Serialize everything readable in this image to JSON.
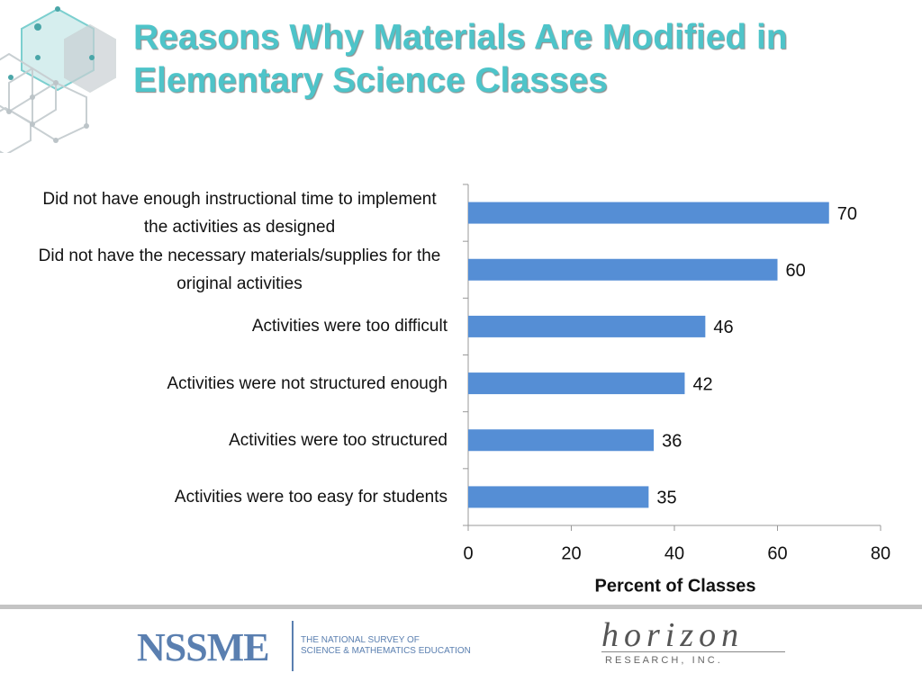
{
  "chart_data": {
    "type": "bar",
    "orientation": "horizontal",
    "title": "Reasons Why Materials Are Modified in Elementary Science Classes",
    "categories": [
      "Did not have enough instructional time to implement the activities as designed",
      "Did not have the necessary materials/supplies for the original activities",
      "Activities were too difficult",
      "Activities were not structured enough",
      "Activities were too structured",
      "Activities were too easy for students"
    ],
    "values": [
      70,
      60,
      46,
      42,
      36,
      35
    ],
    "color": "#558ed5",
    "xlim": [
      0,
      80
    ],
    "xticks": [
      0,
      20,
      40,
      60,
      80
    ],
    "xlabel": "Percent of Classes"
  },
  "footer": {
    "left_logo": "NSSME",
    "left_logo_text": [
      "THE NATIONAL SURVEY OF",
      "SCIENCE & MATHEMATICS EDUCATION"
    ],
    "right_logo": "horizon",
    "right_logo_text": "R E S E A R C H ,   I N C ."
  }
}
